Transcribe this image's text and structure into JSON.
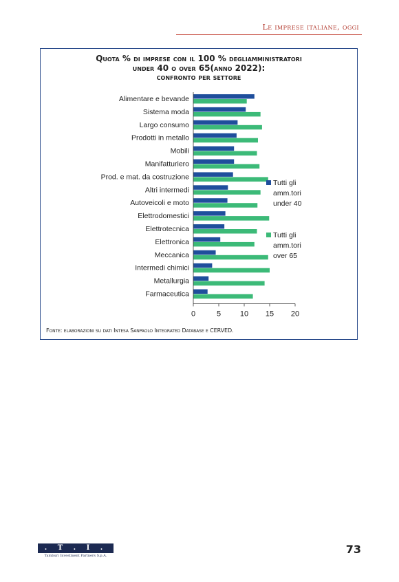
{
  "header": {
    "running_title": "Le imprese italiane, oggi"
  },
  "chart_data": {
    "type": "bar",
    "orientation": "horizontal",
    "title_lines": [
      "Quota % di imprese con il 100 % degliamministratori",
      "under 40 o over 65(anno 2022):",
      "confronto per settore"
    ],
    "categories": [
      "Alimentare e bevande",
      "Sistema moda",
      "Largo consumo",
      "Prodotti in metallo",
      "Mobili",
      "Manifatturiero",
      "Prod. e mat. da costruzione",
      "Altri intermedi",
      "Autoveicoli e moto",
      "Elettrodomestici",
      "Elettrotecnica",
      "Elettronica",
      "Meccanica",
      "Intermedi chimici",
      "Metallurgia",
      "Farmaceutica"
    ],
    "series": [
      {
        "name": "Tutti gli amm.tori under 40",
        "legend_lines": [
          "Tutti gli",
          "amm.tori",
          "under 40"
        ],
        "color": "#1f4e9c",
        "values": [
          12,
          10.3,
          8.7,
          8.5,
          8,
          8,
          7.8,
          6.8,
          6.7,
          6.3,
          6.1,
          5.3,
          4.4,
          3.7,
          3,
          2.8
        ]
      },
      {
        "name": "Tutti gli amm.tori over 65",
        "legend_lines": [
          "Tutti gli",
          "amm.tori",
          "over 65"
        ],
        "color": "#3cba78",
        "values": [
          10.5,
          13.2,
          13.5,
          12.7,
          12.5,
          13,
          14.7,
          13.2,
          12.6,
          14.9,
          12.5,
          12,
          14.7,
          15,
          14,
          11.7
        ]
      }
    ],
    "x_ticks": [
      "0",
      "5",
      "10",
      "15",
      "20"
    ],
    "xlim": [
      0,
      20
    ],
    "grid": false,
    "legend_position": "right"
  },
  "source": "Fonte: elaborazioni su dati Intesa Sanpaolo Integrated Database e CERVED.",
  "footer": {
    "logo_text": ". T . I . P .",
    "logo_sub": "Tamburi Investment Partners S.p.A.",
    "page_number": "73"
  }
}
